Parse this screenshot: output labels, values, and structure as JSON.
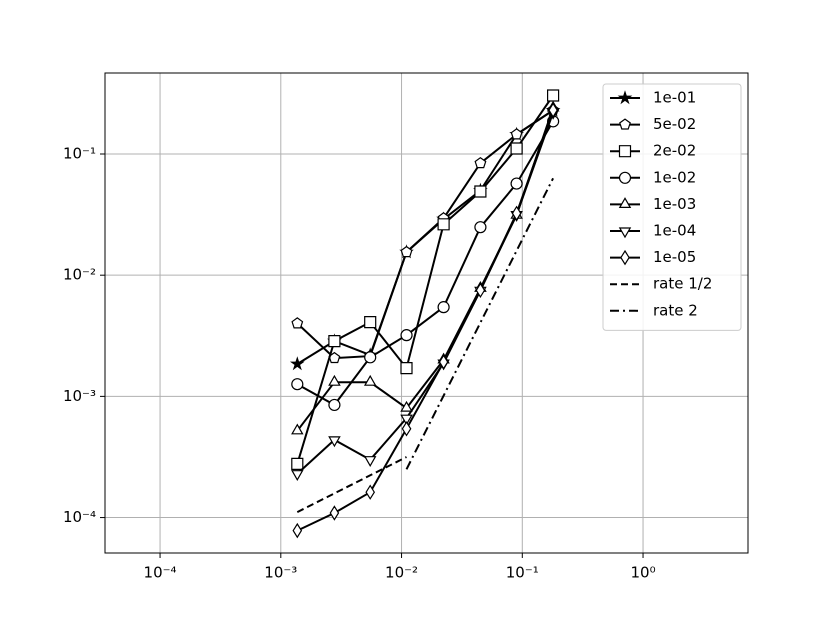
{
  "chart_data": {
    "type": "line",
    "xscale": "log",
    "yscale": "log",
    "grid": true,
    "legend": "upper right",
    "xlim": [
      3.5e-05,
      7.4
    ],
    "ylim": [
      5.1e-05,
      0.466
    ],
    "xticks": [
      {
        "value": 0.0001,
        "label": "10⁻⁴"
      },
      {
        "value": 0.001,
        "label": "10⁻³"
      },
      {
        "value": 0.01,
        "label": "10⁻²"
      },
      {
        "value": 0.1,
        "label": "10⁻¹"
      },
      {
        "value": 1,
        "label": "10⁰"
      }
    ],
    "yticks": [
      {
        "value": 0.0001,
        "label": "10⁻⁴"
      },
      {
        "value": 0.001,
        "label": "10⁻³"
      },
      {
        "value": 0.01,
        "label": "10⁻²"
      },
      {
        "value": 0.1,
        "label": "10⁻¹"
      }
    ],
    "series": [
      {
        "name": "1e-01",
        "color": "#000000",
        "marker": "star",
        "x": [
          0.00137,
          0.00278,
          0.0055,
          0.011,
          0.0223,
          0.045,
          0.0897,
          0.18
        ],
        "values": [
          0.00185,
          0.00286,
          0.00219,
          0.0155,
          0.029,
          0.05,
          0.145,
          0.229
        ]
      },
      {
        "name": "5e-02",
        "color": "#000000",
        "marker": "pentagon",
        "x": [
          0.00137,
          0.00278,
          0.0055,
          0.011,
          0.0223,
          0.045,
          0.0897,
          0.18
        ],
        "values": [
          0.004,
          0.00207,
          0.00215,
          0.0155,
          0.0295,
          0.084,
          0.145,
          0.23
        ]
      },
      {
        "name": "2e-02",
        "color": "#000000",
        "marker": "square",
        "x": [
          0.00137,
          0.00278,
          0.0055,
          0.011,
          0.0223,
          0.045,
          0.0897,
          0.18
        ],
        "values": [
          0.000277,
          0.00286,
          0.0041,
          0.00171,
          0.0263,
          0.049,
          0.111,
          0.304
        ]
      },
      {
        "name": "1e-02",
        "color": "#000000",
        "marker": "circle",
        "x": [
          0.00137,
          0.00278,
          0.0055,
          0.011,
          0.0223,
          0.045,
          0.0897,
          0.18
        ],
        "values": [
          0.00126,
          0.00085,
          0.0021,
          0.0032,
          0.00545,
          0.0249,
          0.057,
          0.186
        ]
      },
      {
        "name": "1e-03",
        "color": "#000000",
        "marker": "triangle-up",
        "x": [
          0.00137,
          0.00278,
          0.0055,
          0.011,
          0.0223,
          0.045,
          0.0897,
          0.18
        ],
        "values": [
          0.00052,
          0.00131,
          0.00131,
          0.0008,
          0.002,
          0.0078,
          0.0313,
          0.24
        ]
      },
      {
        "name": "1e-04",
        "color": "#000000",
        "marker": "triangle-down",
        "x": [
          0.00137,
          0.00278,
          0.0055,
          0.011,
          0.0223,
          0.045,
          0.0897,
          0.18
        ],
        "values": [
          0.00023,
          0.000437,
          0.0003,
          0.00066,
          0.00188,
          0.0075,
          0.0316,
          0.22
        ]
      },
      {
        "name": "1e-05",
        "color": "#000000",
        "marker": "diamond",
        "x": [
          0.00137,
          0.00278,
          0.0055,
          0.011,
          0.0223,
          0.045,
          0.0897,
          0.18
        ],
        "values": [
          7.8e-05,
          0.000109,
          0.000162,
          0.00054,
          0.00192,
          0.0075,
          0.0324,
          0.23
        ]
      },
      {
        "name": "rate 1/2",
        "color": "#000000",
        "dash": "dashed",
        "x": [
          0.00137,
          0.011
        ],
        "values": [
          0.000111,
          0.000316
        ]
      },
      {
        "name": "rate 2",
        "color": "#000000",
        "dash": "dashdot",
        "x": [
          0.011,
          0.18
        ],
        "values": [
          0.00025,
          0.063
        ]
      }
    ]
  }
}
